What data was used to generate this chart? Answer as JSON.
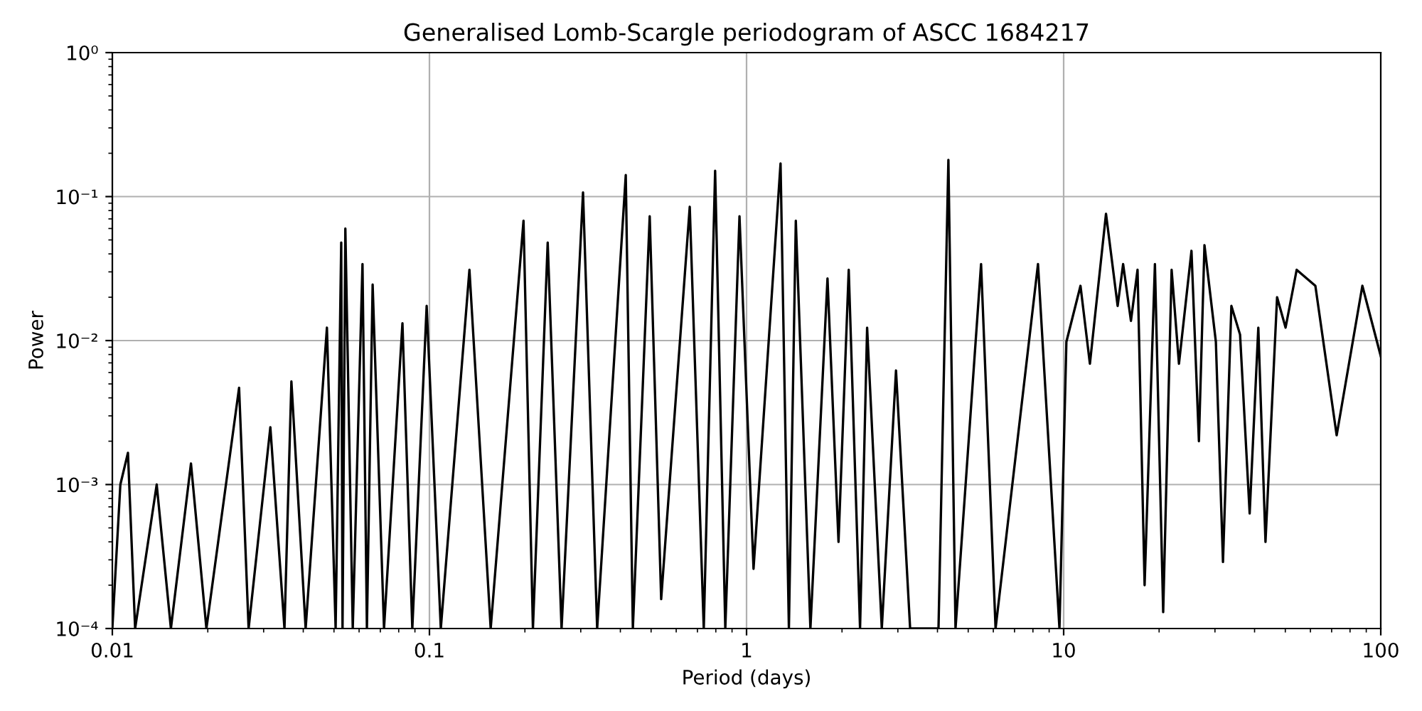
{
  "chart_data": {
    "type": "line",
    "title": "Generalised Lomb-Scargle periodogram of ASCC 1684217",
    "xlabel": "Period (days)",
    "ylabel": "Power",
    "log": "xy",
    "grid": true,
    "marker": "none",
    "line_style": "solid",
    "xlim": [
      0.01,
      100
    ],
    "ylim": [
      0.0001,
      1
    ],
    "xticks": [
      0.01,
      0.1,
      1,
      10,
      100
    ],
    "yticks": [
      {
        "value": 0.0001,
        "label": "10⁻⁴"
      },
      {
        "value": 0.001,
        "label": "10⁻³"
      },
      {
        "value": 0.01,
        "label": "10⁻²"
      },
      {
        "value": 0.1,
        "label": "10⁻¹"
      },
      {
        "value": 1,
        "label": "10⁰"
      }
    ],
    "series": [
      {
        "color": "#000000",
        "x": [
          0.01,
          0.0106,
          0.0112,
          0.0118,
          0.0138,
          0.0153,
          0.0177,
          0.0198,
          0.0251,
          0.0269,
          0.0315,
          0.0349,
          0.0367,
          0.0407,
          0.0475,
          0.0506,
          0.0527,
          0.0532,
          0.0543,
          0.0573,
          0.0615,
          0.0635,
          0.0662,
          0.0719,
          0.0822,
          0.0883,
          0.098,
          0.1086,
          0.1337,
          0.156,
          0.198,
          0.212,
          0.236,
          0.261,
          0.305,
          0.338,
          0.416,
          0.438,
          0.495,
          0.538,
          0.662,
          0.733,
          0.796,
          0.857,
          0.95,
          1.052,
          1.28,
          1.36,
          1.43,
          1.59,
          1.8,
          1.95,
          2.1,
          2.28,
          2.4,
          2.67,
          2.96,
          3.28,
          4.03,
          4.33,
          4.56,
          5.49,
          6.1,
          8.3,
          9.7,
          10.2,
          11.3,
          12.1,
          13.6,
          14.8,
          15.4,
          16.3,
          17.1,
          18.0,
          19.4,
          20.6,
          21.9,
          23.1,
          25.3,
          26.7,
          27.8,
          30.2,
          31.8,
          33.8,
          36,
          38.6,
          41.1,
          43.3,
          47.1,
          50.1,
          54.3,
          62.2,
          72.6,
          87.5,
          100
        ],
        "values": [
          0.0001,
          0.001,
          0.00166,
          0.0001,
          0.001,
          0.0001,
          0.0014,
          0.0001,
          0.0047,
          0.0001,
          0.0025,
          0.0001,
          0.0052,
          0.0001,
          0.0123,
          0.0001,
          0.048,
          0.0001,
          0.06,
          0.0001,
          0.034,
          0.0001,
          0.0245,
          0.0001,
          0.0132,
          0.0001,
          0.0174,
          0.0001,
          0.031,
          0.0001,
          0.068,
          0.0001,
          0.048,
          0.0001,
          0.107,
          0.0001,
          0.141,
          0.0001,
          0.073,
          0.00016,
          0.085,
          0.0001,
          0.151,
          0.0001,
          0.073,
          0.00026,
          0.17,
          0.0001,
          0.068,
          0.0001,
          0.027,
          0.0004,
          0.031,
          0.0001,
          0.0123,
          0.0001,
          0.0062,
          0.0001,
          0.0001,
          0.18,
          0.0001,
          0.034,
          0.0001,
          0.034,
          0.0001,
          0.0098,
          0.024,
          0.0069,
          0.076,
          0.0174,
          0.034,
          0.0137,
          0.031,
          0.0002,
          0.034,
          0.00013,
          0.031,
          0.0069,
          0.042,
          0.002,
          0.046,
          0.0098,
          0.00029,
          0.0174,
          0.011,
          0.00063,
          0.0123,
          0.0004,
          0.02,
          0.0123,
          0.031,
          0.024,
          0.0022,
          0.024,
          0.0078
        ]
      }
    ]
  }
}
